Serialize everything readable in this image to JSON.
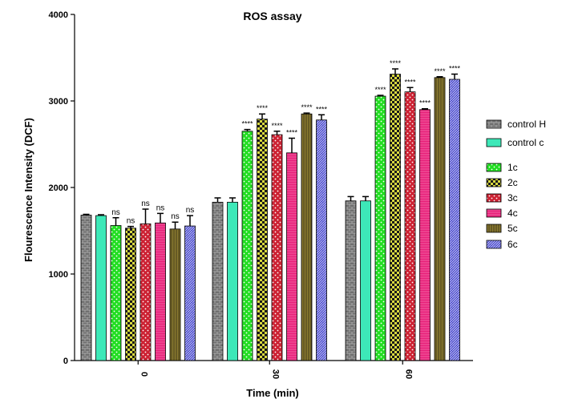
{
  "chart_data": {
    "type": "bar",
    "title": "ROS assay",
    "xlabel": "Time (min)",
    "ylabel": "Flourescence Intensity (DCF)",
    "ylim": [
      0,
      4000
    ],
    "yticks": [
      0,
      1000,
      2000,
      3000,
      4000
    ],
    "categories": [
      "0",
      "30",
      "60"
    ],
    "legend_position": "right",
    "series": [
      {
        "name": "control H",
        "values": [
          1680,
          1830,
          1845
        ],
        "errors": [
          10,
          50,
          50
        ],
        "sig": [
          "",
          "",
          ""
        ],
        "color": "#6f6f6f",
        "pattern": "brick"
      },
      {
        "name": "control c",
        "values": [
          1675,
          1830,
          1845
        ],
        "errors": [
          10,
          50,
          50
        ],
        "sig": [
          "",
          "",
          ""
        ],
        "color": "#3de8b8",
        "pattern": "solid"
      },
      {
        "name": "1c",
        "values": [
          1560,
          2650,
          3055
        ],
        "errors": [
          90,
          20,
          10
        ],
        "sig": [
          "ns",
          "****",
          "****"
        ],
        "color": "#22dd22",
        "pattern": "dots"
      },
      {
        "name": "2c",
        "values": [
          1530,
          2790,
          3310
        ],
        "errors": [
          20,
          60,
          60
        ],
        "sig": [
          "ns",
          "****",
          "****"
        ],
        "color": "#d9d940",
        "pattern": "checker"
      },
      {
        "name": "3c",
        "values": [
          1580,
          2610,
          3105
        ],
        "errors": [
          170,
          40,
          50
        ],
        "sig": [
          "ns",
          "****",
          "****"
        ],
        "color": "#cc2233",
        "pattern": "dots"
      },
      {
        "name": "4c",
        "values": [
          1590,
          2400,
          2900
        ],
        "errors": [
          110,
          170,
          10
        ],
        "sig": [
          "ns",
          "****",
          "****"
        ],
        "color": "#e8207a",
        "pattern": "hlines"
      },
      {
        "name": "5c",
        "values": [
          1520,
          2850,
          3270
        ],
        "errors": [
          80,
          10,
          10
        ],
        "sig": [
          "ns",
          "****",
          "****"
        ],
        "color": "#8a7a30",
        "pattern": "vlines"
      },
      {
        "name": "6c",
        "values": [
          1555,
          2780,
          3250
        ],
        "errors": [
          120,
          60,
          60
        ],
        "sig": [
          "ns",
          "****",
          "****"
        ],
        "color": "#4444cc",
        "pattern": "diag"
      }
    ]
  }
}
